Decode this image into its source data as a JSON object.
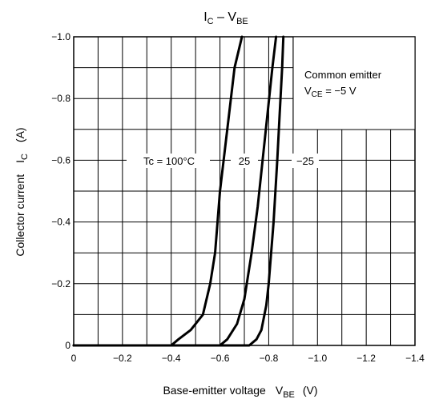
{
  "chart_data": {
    "type": "line",
    "title": {
      "main": "I",
      "main_sub": "C",
      "dash": " – V",
      "dash_sub": "BE"
    },
    "xlabel": {
      "text": "Base-emitter voltage",
      "symbol": "V",
      "symbol_sub": "BE",
      "unit": "(V)"
    },
    "ylabel": {
      "text": "Collector current",
      "symbol": "I",
      "symbol_sub": "C",
      "unit": "(A)"
    },
    "xlim": [
      0,
      -1.4
    ],
    "ylim": [
      0,
      -1.0
    ],
    "x_ticks": [
      0,
      -0.2,
      -0.4,
      -0.6,
      -0.8,
      -1.0,
      -1.2,
      -1.4
    ],
    "x_tick_labels": [
      "0",
      "−0.2",
      "−0.4",
      "−0.6",
      "−0.8",
      "−1.0",
      "−1.2",
      "−1.4"
    ],
    "y_ticks": [
      0,
      -0.2,
      -0.4,
      -0.6,
      -0.8,
      -1.0
    ],
    "y_tick_labels": [
      "0",
      "−0.2",
      "−0.4",
      "−0.6",
      "−0.8",
      "−1.0"
    ],
    "grid": true,
    "annotation": {
      "line1": "Common emitter",
      "line2_prefix": "V",
      "line2_sub": "CE",
      "line2_suffix": " = −5 V"
    },
    "series": [
      {
        "label": "Tc = 100°C",
        "x": [
          0,
          -0.4,
          -0.43,
          -0.48,
          -0.53,
          -0.56,
          -0.58,
          -0.6,
          -0.63,
          -0.66,
          -0.69
        ],
        "y": [
          0,
          0,
          -0.02,
          -0.05,
          -0.1,
          -0.2,
          -0.3,
          -0.5,
          -0.7,
          -0.9,
          -1.0
        ]
      },
      {
        "label": "25",
        "x": [
          0,
          -0.6,
          -0.63,
          -0.67,
          -0.7,
          -0.73,
          -0.755,
          -0.775,
          -0.795,
          -0.815,
          -0.83
        ],
        "y": [
          0,
          0,
          -0.02,
          -0.07,
          -0.15,
          -0.3,
          -0.45,
          -0.6,
          -0.75,
          -0.9,
          -1.0
        ]
      },
      {
        "label": "−25",
        "x": [
          0,
          -0.72,
          -0.75,
          -0.77,
          -0.79,
          -0.8,
          -0.82,
          -0.835,
          -0.845,
          -0.855,
          -0.86
        ],
        "y": [
          0,
          0,
          -0.02,
          -0.05,
          -0.13,
          -0.2,
          -0.4,
          -0.6,
          -0.75,
          -0.9,
          -1.0
        ]
      }
    ]
  }
}
